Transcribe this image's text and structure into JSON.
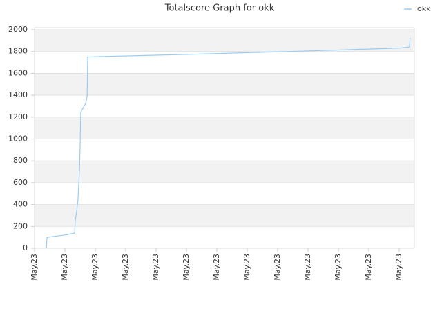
{
  "chart_data": {
    "type": "line",
    "title": "Totalscore Graph for okk",
    "x": [
      0.39,
      0.41,
      0.43,
      0.68,
      1.02,
      1.32,
      1.34,
      1.39,
      1.43,
      1.48,
      1.5,
      1.52,
      1.59,
      1.68,
      1.73,
      1.75,
      2.27,
      3.75,
      5.23,
      6.82,
      8.41,
      9.77,
      11.25,
      12.05,
      12.34,
      12.36
    ],
    "series": [
      {
        "name": "okk",
        "color": "#99ccf5",
        "values": [
          0,
          95,
          100,
          110,
          122,
          139,
          252,
          350,
          442,
          726,
          946,
          1243,
          1281,
          1325,
          1388,
          1750,
          1755,
          1765,
          1775,
          1788,
          1800,
          1812,
          1825,
          1832,
          1842,
          1924
        ]
      }
    ],
    "xlim": [
      0,
      12.5
    ],
    "xticks": [
      {
        "value": 0,
        "label": "May.23"
      },
      {
        "value": 1,
        "label": "May.23"
      },
      {
        "value": 2,
        "label": "May.23"
      },
      {
        "value": 3,
        "label": "May.23"
      },
      {
        "value": 4,
        "label": "May.23"
      },
      {
        "value": 5,
        "label": "May.23"
      },
      {
        "value": 6,
        "label": "May.23"
      },
      {
        "value": 7,
        "label": "May.23"
      },
      {
        "value": 8,
        "label": "May.23"
      },
      {
        "value": 9,
        "label": "May.23"
      },
      {
        "value": 10,
        "label": "May.23"
      },
      {
        "value": 11,
        "label": "May.23"
      },
      {
        "value": 12,
        "label": "May.23"
      }
    ],
    "ylim": [
      0,
      2000
    ],
    "yticks": [
      0,
      200,
      400,
      600,
      800,
      1000,
      1200,
      1400,
      1600,
      1800,
      2000
    ],
    "grid": true,
    "legend": "top-right"
  }
}
